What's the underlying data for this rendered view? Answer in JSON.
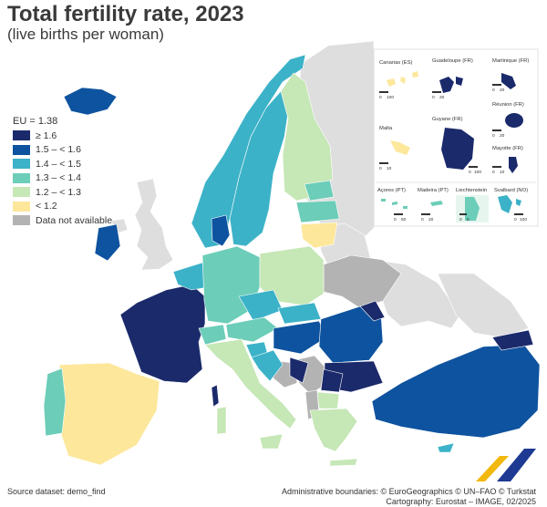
{
  "title": "Total fertility rate, 2023",
  "subtitle": "(live births per woman)",
  "legend": {
    "eu_label": "EU = 1.38",
    "items": [
      {
        "label": "≥ 1.6",
        "color": "#1b2a6b"
      },
      {
        "label": "1.5 – < 1.6",
        "color": "#0e539f"
      },
      {
        "label": "1.4 – < 1.5",
        "color": "#3cb2c8"
      },
      {
        "label": "1.3 – < 1.4",
        "color": "#6ccdb8"
      },
      {
        "label": "1.2 – < 1.3",
        "color": "#c6e7b6"
      },
      {
        "label": "< 1.2",
        "color": "#fde79b"
      },
      {
        "label": "Data not available",
        "color": "#b3b3b3"
      }
    ]
  },
  "insets": {
    "canarias": "Canarias (ES)",
    "guadeloupe": "Guadeloupe (FR)",
    "martinique": "Martinique (FR)",
    "reunion": "Réunion (FR)",
    "malta": "Malta",
    "guyane": "Guyane (FR)",
    "mayotte": "Mayotte (FR)",
    "acores": "Açores (PT)",
    "madeira": "Madeira (PT)",
    "liechtenstein": "Liechtenstein",
    "svalbard": "Svalbard (NO)"
  },
  "scales": {
    "canarias": "100",
    "guadeloupe": "20",
    "martinique": "20",
    "reunion": "20",
    "malta": "10",
    "guyane": "100",
    "mayotte": "10",
    "acores": "50",
    "madeira": "20",
    "liechtenstein": "5",
    "svalbard": "100",
    "zero": "0"
  },
  "footer": {
    "source": "Source dataset: demo_find",
    "boundaries": "Administrative boundaries: © EuroGeographics © UN–FAO © Turkstat",
    "cartography": "Cartography: Eurostat – IMAGE, 02/2025"
  },
  "colors": {
    "ge16": "#1b2a6b",
    "c15": "#0e539f",
    "c14": "#3cb2c8",
    "c13": "#6ccdb8",
    "c12": "#c6e7b6",
    "lt12": "#fde79b",
    "na": "#b3b3b3",
    "nonmember": "#dedede",
    "sea": "#ffffff",
    "logo_yellow": "#f2b90c",
    "logo_blue": "#1f3a93"
  }
}
